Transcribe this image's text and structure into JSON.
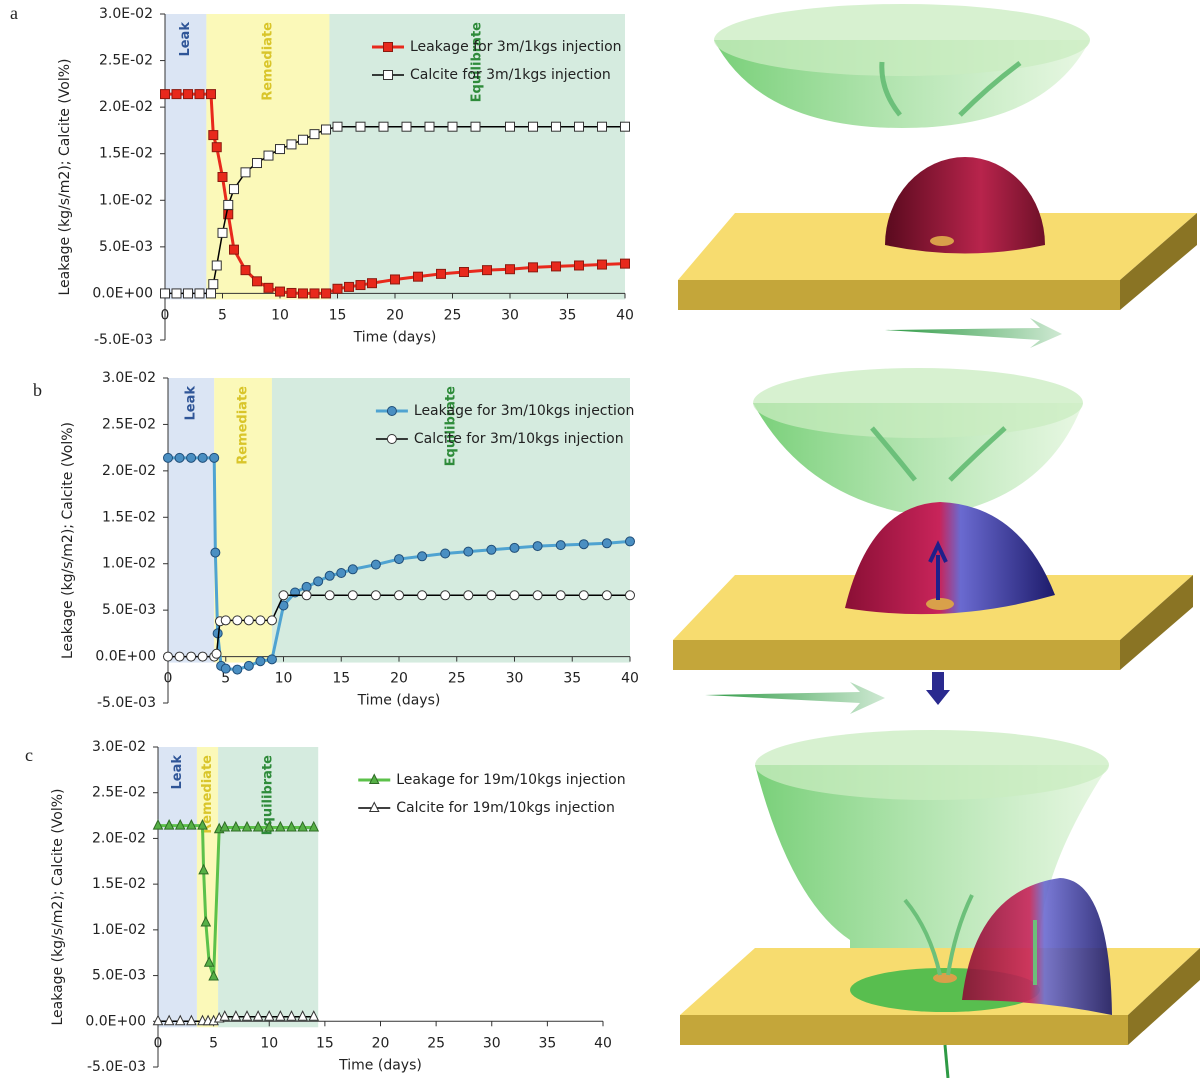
{
  "chart_data": [
    {
      "type": "line",
      "panel_label": "a",
      "xlabel": "Time (days)",
      "ylabel": "Leakage (kg/s/m2); Calcite (Vol%)",
      "xlim": [
        0,
        40
      ],
      "xticks": [
        0,
        5,
        10,
        15,
        20,
        25,
        30,
        35,
        40
      ],
      "ylim": [
        -0.005,
        0.03
      ],
      "yticks": [
        {
          "value": -0.005,
          "label": "-5.0E-03"
        },
        {
          "value": 0,
          "label": "0.0E+00"
        },
        {
          "value": 0.005,
          "label": "5.0E-03"
        },
        {
          "value": 0.01,
          "label": "1.0E-02"
        },
        {
          "value": 0.015,
          "label": "1.5E-02"
        },
        {
          "value": 0.02,
          "label": "2.0E-02"
        },
        {
          "value": 0.025,
          "label": "2.5E-02"
        },
        {
          "value": 0.03,
          "label": "3.0E-02"
        }
      ],
      "regions": [
        {
          "label": "Leak",
          "start": 0,
          "end": 3.6,
          "color": "#dbe5f4",
          "text_color": "#2f5597"
        },
        {
          "label": "Remediate",
          "start": 3.6,
          "end": 14.3,
          "color": "#fbf9b9",
          "text_color": "#d9c52a"
        },
        {
          "label": "Equilibrate",
          "start": 14.3,
          "end": 40,
          "color": "#d5ebdf",
          "text_color": "#2e8b3a"
        }
      ],
      "series": [
        {
          "name": "Leakage for 3m/1kgs injection",
          "color": "#e8291c",
          "marker": "square",
          "marker_fill": "#e8291c",
          "marker_edge": "#8b1a10",
          "x": [
            0,
            1,
            2,
            3,
            4,
            4.2,
            4.5,
            5,
            5.5,
            6,
            7,
            8,
            9,
            10,
            11,
            12,
            13,
            14,
            15,
            16,
            17,
            18,
            20,
            22,
            24,
            26,
            28,
            30,
            32,
            34,
            36,
            38,
            40
          ],
          "values": [
            0.0214,
            0.0214,
            0.0214,
            0.0214,
            0.0214,
            0.017,
            0.0157,
            0.0125,
            0.0085,
            0.0047,
            0.0025,
            0.0013,
            0.0006,
            0.0002,
            5e-05,
            0,
            0,
            0,
            0.0005,
            0.0007,
            0.0009,
            0.0011,
            0.0015,
            0.0018,
            0.0021,
            0.0023,
            0.0025,
            0.0026,
            0.0028,
            0.0029,
            0.003,
            0.0031,
            0.0032
          ]
        },
        {
          "name": "Calcite for 3m/1kgs injection",
          "color": "#000000",
          "marker": "square",
          "marker_fill": "#ffffff",
          "marker_edge": "#333333",
          "x": [
            0,
            1,
            2,
            3,
            4,
            4.2,
            4.5,
            5,
            5.5,
            6,
            7,
            8,
            9,
            10,
            11,
            12,
            13,
            14,
            15,
            17,
            19,
            21,
            23,
            25,
            27,
            30,
            32,
            34,
            36,
            38,
            40
          ],
          "values": [
            0,
            0,
            0,
            0,
            0,
            0.001,
            0.003,
            0.0065,
            0.0095,
            0.0112,
            0.013,
            0.014,
            0.0148,
            0.0155,
            0.016,
            0.0165,
            0.0171,
            0.0176,
            0.0179,
            0.0179,
            0.0179,
            0.0179,
            0.0179,
            0.0179,
            0.0179,
            0.0179,
            0.0179,
            0.0179,
            0.0179,
            0.0179,
            0.0179
          ]
        }
      ]
    },
    {
      "type": "line",
      "panel_label": "b",
      "xlabel": "Time (days)",
      "ylabel": "Leakage (kg/s/m2); Calcite (Vol%)",
      "xlim": [
        0,
        40
      ],
      "xticks": [
        0,
        5,
        10,
        15,
        20,
        25,
        30,
        35,
        40
      ],
      "ylim": [
        -0.005,
        0.03
      ],
      "yticks": [
        {
          "value": -0.005,
          "label": "-5.0E-03"
        },
        {
          "value": 0,
          "label": "0.0E+00"
        },
        {
          "value": 0.005,
          "label": "5.0E-03"
        },
        {
          "value": 0.01,
          "label": "1.0E-02"
        },
        {
          "value": 0.015,
          "label": "1.5E-02"
        },
        {
          "value": 0.02,
          "label": "2.0E-02"
        },
        {
          "value": 0.025,
          "label": "2.5E-02"
        },
        {
          "value": 0.03,
          "label": "3.0E-02"
        }
      ],
      "regions": [
        {
          "label": "Leak",
          "start": 0,
          "end": 4,
          "color": "#dbe5f4",
          "text_color": "#2f5597"
        },
        {
          "label": "Remediate",
          "start": 4,
          "end": 9,
          "color": "#fbf9b9",
          "text_color": "#d9c52a"
        },
        {
          "label": "Equilibrate",
          "start": 9,
          "end": 40,
          "color": "#d5ebdf",
          "text_color": "#2e8b3a"
        }
      ],
      "series": [
        {
          "name": "Leakage for 3m/10kgs injection",
          "color": "#4fa3d1",
          "marker": "circle",
          "marker_fill": "#4a8fc2",
          "marker_edge": "#1f4e79",
          "x": [
            0,
            1,
            2,
            3,
            4,
            4.1,
            4.3,
            4.6,
            5,
            6,
            7,
            8,
            9,
            10,
            11,
            12,
            13,
            14,
            15,
            16,
            18,
            20,
            22,
            24,
            26,
            28,
            30,
            32,
            34,
            36,
            38,
            40
          ],
          "values": [
            0.0214,
            0.0214,
            0.0214,
            0.0214,
            0.0214,
            0.0112,
            0.0025,
            -0.001,
            -0.0013,
            -0.0014,
            -0.001,
            -0.0005,
            -0.0003,
            0.0055,
            0.0069,
            0.0075,
            0.0081,
            0.0087,
            0.009,
            0.0094,
            0.0099,
            0.0105,
            0.0108,
            0.0111,
            0.0113,
            0.0115,
            0.0117,
            0.0119,
            0.012,
            0.0121,
            0.0122,
            0.0124
          ]
        },
        {
          "name": "Calcite for 3m/10kgs injection",
          "color": "#000000",
          "marker": "circle",
          "marker_fill": "#ffffff",
          "marker_edge": "#333333",
          "x": [
            0,
            1,
            2,
            3,
            4,
            4.2,
            4.5,
            5,
            6,
            7,
            8,
            9,
            10,
            12,
            14,
            16,
            18,
            20,
            22,
            24,
            26,
            28,
            30,
            32,
            34,
            36,
            38,
            40
          ],
          "values": [
            0,
            0,
            0,
            0,
            0,
            0.0003,
            0.0038,
            0.0039,
            0.0039,
            0.0039,
            0.0039,
            0.0039,
            0.0066,
            0.0066,
            0.0066,
            0.0066,
            0.0066,
            0.0066,
            0.0066,
            0.0066,
            0.0066,
            0.0066,
            0.0066,
            0.0066,
            0.0066,
            0.0066,
            0.0066,
            0.0066
          ]
        }
      ]
    },
    {
      "type": "line",
      "panel_label": "c",
      "xlabel": "Time (days)",
      "ylabel": "Leakage (kg/s/m2); Calcite (Vol%)",
      "xlim": [
        0,
        40
      ],
      "xticks": [
        0,
        5,
        10,
        15,
        20,
        25,
        30,
        35,
        40
      ],
      "ylim": [
        -0.005,
        0.03
      ],
      "yticks": [
        {
          "value": -0.005,
          "label": "-5.0E-03"
        },
        {
          "value": 0,
          "label": "0.0E+00"
        },
        {
          "value": 0.005,
          "label": "5.0E-03"
        },
        {
          "value": 0.01,
          "label": "1.0E-02"
        },
        {
          "value": 0.015,
          "label": "1.5E-02"
        },
        {
          "value": 0.02,
          "label": "2.0E-02"
        },
        {
          "value": 0.025,
          "label": "2.5E-02"
        },
        {
          "value": 0.03,
          "label": "3.0E-02"
        }
      ],
      "regions": [
        {
          "label": "Leak",
          "start": 0,
          "end": 3.5,
          "color": "#dbe5f4",
          "text_color": "#2f5597"
        },
        {
          "label": "Remediate",
          "start": 3.5,
          "end": 5.4,
          "color": "#fbf9b9",
          "text_color": "#d9c52a"
        },
        {
          "label": "Equilibrate",
          "start": 5.4,
          "end": 14.4,
          "color": "#d5ebdf",
          "text_color": "#2e8b3a"
        }
      ],
      "series": [
        {
          "name": "Leakage for 19m/10kgs injection",
          "color": "#5cc14a",
          "marker": "triangle",
          "marker_fill": "#56b046",
          "marker_edge": "#2e6b25",
          "x": [
            0,
            1,
            2,
            3,
            4,
            4.1,
            4.3,
            4.6,
            5,
            5.5,
            6,
            7,
            8,
            9,
            10,
            11,
            12,
            13,
            14
          ],
          "values": [
            0.0214,
            0.0214,
            0.0214,
            0.0214,
            0.0214,
            0.0165,
            0.0108,
            0.0064,
            0.0049,
            0.021,
            0.0212,
            0.0212,
            0.0212,
            0.0212,
            0.0212,
            0.0212,
            0.0212,
            0.0212,
            0.0212
          ]
        },
        {
          "name": "Calcite for 19m/10kgs injection",
          "color": "#000000",
          "marker": "triangle",
          "marker_fill": "#ffffff",
          "marker_edge": "#333333",
          "x": [
            0,
            1,
            2,
            3,
            4,
            4.5,
            5,
            5.5,
            6,
            7,
            8,
            9,
            10,
            11,
            12,
            13,
            14
          ],
          "values": [
            0,
            0,
            0,
            0,
            0,
            0,
            0,
            0.0003,
            0.0005,
            0.0005,
            0.0005,
            0.0005,
            0.0005,
            0.0005,
            0.0005,
            0.0005,
            0.0005
          ]
        }
      ]
    }
  ]
}
